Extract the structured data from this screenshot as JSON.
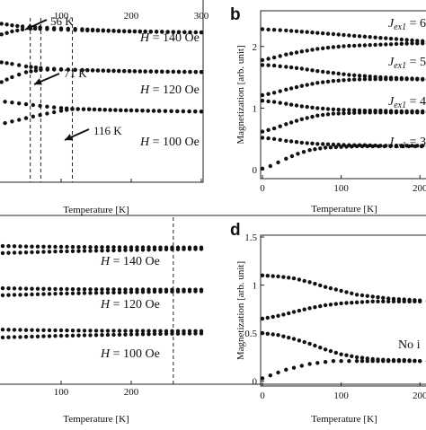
{
  "chart_data": [
    {
      "panel": "a",
      "type": "scatter",
      "xlabel": "Temperature [K]",
      "xticks": [
        100,
        200,
        300
      ],
      "xlim": [
        0,
        300
      ],
      "ylim": [
        0,
        1
      ],
      "grid": false,
      "annotations": [
        {
          "text": "56 K",
          "x": 56
        },
        {
          "text": "71 K",
          "x": 71
        },
        {
          "text": "116 K",
          "x": 116
        }
      ],
      "dashed_lines_x": [
        56,
        71,
        116
      ],
      "series": [
        {
          "name": "H = 140 Oe",
          "label_parts": [
            "H",
            " = 140 Oe"
          ],
          "branches": [
            {
              "x": [
                0,
                15,
                30,
                45,
                56,
                70,
                90,
                110,
                130,
                160,
                190,
                220,
                260,
                300
              ],
              "y": [
                0.975,
                0.965,
                0.955,
                0.948,
                0.945,
                0.942,
                0.938,
                0.935,
                0.932,
                0.925,
                0.92,
                0.918,
                0.915,
                0.912
              ]
            },
            {
              "x": [
                0,
                15,
                30,
                45,
                56,
                70,
                90,
                110,
                130,
                160,
                190,
                220,
                260,
                300
              ],
              "y": [
                0.88,
                0.9,
                0.918,
                0.93,
                0.935,
                0.934,
                0.93,
                0.928,
                0.925,
                0.922,
                0.918,
                0.916,
                0.914,
                0.912
              ]
            }
          ]
        },
        {
          "name": "H = 120 Oe",
          "label_parts": [
            "H",
            " = 120 Oe"
          ],
          "branches": [
            {
              "x": [
                0,
                15,
                30,
                50,
                71,
                90,
                110,
                130,
                160,
                190,
                220,
                260,
                300
              ],
              "y": [
                0.74,
                0.73,
                0.72,
                0.705,
                0.695,
                0.69,
                0.686,
                0.683,
                0.68,
                0.677,
                0.675,
                0.673,
                0.671
              ]
            },
            {
              "x": [
                0,
                15,
                30,
                50,
                71,
                90,
                110,
                130,
                160,
                190,
                220,
                260,
                300
              ],
              "y": [
                0.58,
                0.61,
                0.64,
                0.67,
                0.684,
                0.686,
                0.685,
                0.682,
                0.679,
                0.676,
                0.674,
                0.672,
                0.671
              ]
            }
          ]
        },
        {
          "name": "H = 100 Oe",
          "label_parts": [
            "H",
            " = 100 Oe"
          ],
          "branches": [
            {
              "x": [
                0,
                20,
                40,
                60,
                80,
                100,
                116,
                140,
                170,
                200,
                240,
                300
              ],
              "y": [
                0.5,
                0.49,
                0.48,
                0.47,
                0.46,
                0.452,
                0.447,
                0.444,
                0.44,
                0.437,
                0.434,
                0.43
              ]
            },
            {
              "x": [
                0,
                20,
                40,
                60,
                80,
                100,
                116,
                140,
                170,
                200,
                240,
                300
              ],
              "y": [
                0.34,
                0.36,
                0.38,
                0.4,
                0.418,
                0.435,
                0.445,
                0.444,
                0.44,
                0.437,
                0.434,
                0.43
              ]
            }
          ]
        }
      ]
    },
    {
      "panel": "b",
      "type": "scatter",
      "xlabel": "Temperature [K]",
      "ylabel": "Magnetization [arb. unit]",
      "xticks": [
        0,
        100,
        200
      ],
      "yticks": [
        0,
        1,
        2
      ],
      "xlim": [
        0,
        210
      ],
      "ylim": [
        -0.1,
        2.55
      ],
      "grid": false,
      "series": [
        {
          "name": "J_ex1 = 6.",
          "label_parts": [
            "J",
            "ex1",
            " = 6."
          ],
          "branches": [
            {
              "x": [
                0,
                15,
                30,
                50,
                70,
                90,
                110,
                130,
                150,
                170,
                190,
                210
              ],
              "y": [
                2.28,
                2.27,
                2.26,
                2.24,
                2.22,
                2.2,
                2.18,
                2.16,
                2.14,
                2.12,
                2.1,
                2.08
              ]
            },
            {
              "x": [
                0,
                15,
                30,
                50,
                70,
                90,
                110,
                130,
                150,
                170,
                190,
                210
              ],
              "y": [
                1.78,
                1.82,
                1.87,
                1.92,
                1.96,
                1.99,
                2.01,
                2.02,
                2.03,
                2.04,
                2.05,
                2.05
              ]
            }
          ]
        },
        {
          "name": "J_ex1 = 5.",
          "label_parts": [
            "J",
            "ex1",
            " = 5."
          ],
          "branches": [
            {
              "x": [
                0,
                15,
                30,
                50,
                70,
                90,
                110,
                130,
                150,
                170,
                190,
                210
              ],
              "y": [
                1.7,
                1.69,
                1.67,
                1.64,
                1.6,
                1.57,
                1.54,
                1.52,
                1.5,
                1.49,
                1.48,
                1.47
              ]
            },
            {
              "x": [
                0,
                15,
                30,
                50,
                70,
                90,
                110,
                130,
                150,
                170,
                190,
                210
              ],
              "y": [
                1.21,
                1.25,
                1.3,
                1.36,
                1.41,
                1.44,
                1.46,
                1.47,
                1.47,
                1.47,
                1.47,
                1.46
              ]
            }
          ]
        },
        {
          "name": "J_ex1 = 4.",
          "label_parts": [
            "J",
            "ex1",
            " = 4."
          ],
          "branches": [
            {
              "x": [
                0,
                15,
                30,
                50,
                70,
                90,
                110,
                130,
                150,
                170,
                190,
                210
              ],
              "y": [
                1.12,
                1.1,
                1.07,
                1.03,
                1.0,
                0.98,
                0.97,
                0.96,
                0.96,
                0.95,
                0.95,
                0.95
              ]
            },
            {
              "x": [
                0,
                15,
                30,
                50,
                70,
                90,
                110,
                130,
                150,
                170,
                190,
                210
              ],
              "y": [
                0.62,
                0.67,
                0.74,
                0.82,
                0.88,
                0.91,
                0.92,
                0.93,
                0.93,
                0.93,
                0.93,
                0.93
              ]
            }
          ]
        },
        {
          "name": "J_ex1 = 3.",
          "label_parts": [
            "J",
            "ex1",
            " = 3."
          ],
          "branches": [
            {
              "x": [
                0,
                15,
                30,
                50,
                70,
                90,
                110,
                130,
                150,
                170,
                190,
                210
              ],
              "y": [
                0.52,
                0.5,
                0.47,
                0.44,
                0.42,
                0.41,
                0.4,
                0.4,
                0.39,
                0.39,
                0.39,
                0.39
              ]
            },
            {
              "x": [
                0,
                10,
                20,
                30,
                45,
                60,
                80,
                100,
                120,
                140,
                170,
                210
              ],
              "y": [
                0.02,
                0.06,
                0.12,
                0.18,
                0.26,
                0.32,
                0.36,
                0.37,
                0.38,
                0.38,
                0.38,
                0.38
              ]
            }
          ]
        }
      ]
    },
    {
      "panel": "c",
      "type": "scatter",
      "xlabel": "Temperature [K]",
      "xticks": [
        100,
        200
      ],
      "xlim": [
        0,
        300
      ],
      "ylim": [
        0,
        1
      ],
      "grid": false,
      "dashed_lines_x": [
        260
      ],
      "series": [
        {
          "name": "H = 140 Oe",
          "label_parts": [
            "H",
            " = 140 Oe"
          ],
          "branches": [
            {
              "x": [
                0,
                25,
                50,
                75,
                100,
                125,
                150,
                175,
                200,
                225,
                250,
                275,
                300
              ],
              "y": [
                0.82,
                0.818,
                0.816,
                0.815,
                0.814,
                0.813,
                0.812,
                0.812,
                0.811,
                0.811,
                0.81,
                0.81,
                0.81
              ]
            },
            {
              "x": [
                0,
                25,
                50,
                75,
                100,
                125,
                150,
                175,
                200,
                225,
                250,
                275,
                300
              ],
              "y": [
                0.775,
                0.778,
                0.781,
                0.784,
                0.787,
                0.789,
                0.791,
                0.793,
                0.795,
                0.797,
                0.799,
                0.8,
                0.801
              ]
            }
          ]
        },
        {
          "name": "H = 120 Oe",
          "label_parts": [
            "H",
            " = 120 Oe"
          ],
          "branches": [
            {
              "x": [
                0,
                25,
                50,
                75,
                100,
                125,
                150,
                175,
                200,
                225,
                250,
                275,
                300
              ],
              "y": [
                0.57,
                0.568,
                0.566,
                0.565,
                0.564,
                0.563,
                0.562,
                0.562,
                0.561,
                0.561,
                0.56,
                0.56,
                0.56
              ]
            },
            {
              "x": [
                0,
                25,
                50,
                75,
                100,
                125,
                150,
                175,
                200,
                225,
                250,
                275,
                300
              ],
              "y": [
                0.525,
                0.528,
                0.531,
                0.534,
                0.537,
                0.539,
                0.541,
                0.543,
                0.545,
                0.547,
                0.549,
                0.55,
                0.551
              ]
            }
          ]
        },
        {
          "name": "H = 100 Oe",
          "label_parts": [
            "H",
            " = 100 Oe"
          ],
          "branches": [
            {
              "x": [
                0,
                25,
                50,
                75,
                100,
                125,
                150,
                175,
                200,
                225,
                250,
                275,
                300
              ],
              "y": [
                0.325,
                0.323,
                0.321,
                0.32,
                0.319,
                0.318,
                0.317,
                0.317,
                0.316,
                0.316,
                0.315,
                0.315,
                0.315
              ]
            },
            {
              "x": [
                0,
                25,
                50,
                75,
                100,
                125,
                150,
                175,
                200,
                225,
                250,
                275,
                300
              ],
              "y": [
                0.275,
                0.278,
                0.281,
                0.284,
                0.287,
                0.289,
                0.291,
                0.293,
                0.295,
                0.297,
                0.299,
                0.3,
                0.301
              ]
            }
          ]
        }
      ]
    },
    {
      "panel": "d",
      "type": "scatter",
      "xlabel": "Temperature [K]",
      "ylabel": "Magnetization [arb. unit]",
      "xticks": [
        0,
        100,
        200
      ],
      "yticks": [
        0,
        0.5,
        1,
        1.5
      ],
      "xlim": [
        0,
        210
      ],
      "ylim": [
        -0.05,
        1.5
      ],
      "grid": false,
      "notes": [
        "No i"
      ],
      "series": [
        {
          "branches": [
            {
              "x": [
                0,
                20,
                40,
                60,
                80,
                100,
                120,
                140,
                160,
                180,
                200,
                210
              ],
              "y": [
                1.1,
                1.09,
                1.07,
                1.03,
                0.98,
                0.94,
                0.9,
                0.88,
                0.86,
                0.85,
                0.84,
                0.84
              ]
            },
            {
              "x": [
                0,
                20,
                40,
                60,
                80,
                100,
                120,
                140,
                160,
                180,
                200,
                210
              ],
              "y": [
                0.65,
                0.68,
                0.72,
                0.76,
                0.79,
                0.81,
                0.82,
                0.83,
                0.83,
                0.83,
                0.83,
                0.83
              ]
            }
          ]
        },
        {
          "branches": [
            {
              "x": [
                0,
                20,
                40,
                60,
                80,
                100,
                120,
                140,
                160,
                180,
                200,
                210
              ],
              "y": [
                0.5,
                0.48,
                0.44,
                0.39,
                0.33,
                0.28,
                0.25,
                0.23,
                0.22,
                0.22,
                0.21,
                0.21
              ]
            },
            {
              "x": [
                0,
                10,
                20,
                30,
                40,
                50,
                60,
                70,
                80,
                90,
                100,
                110,
                120,
                140,
                160,
                180,
                200,
                210
              ],
              "y": [
                0.03,
                0.06,
                0.09,
                0.12,
                0.14,
                0.16,
                0.18,
                0.19,
                0.2,
                0.21,
                0.21,
                0.21,
                0.21,
                0.21,
                0.21,
                0.21,
                0.21,
                0.21
              ]
            }
          ]
        }
      ]
    }
  ],
  "panel_letters": {
    "b": "b",
    "d": "d"
  }
}
